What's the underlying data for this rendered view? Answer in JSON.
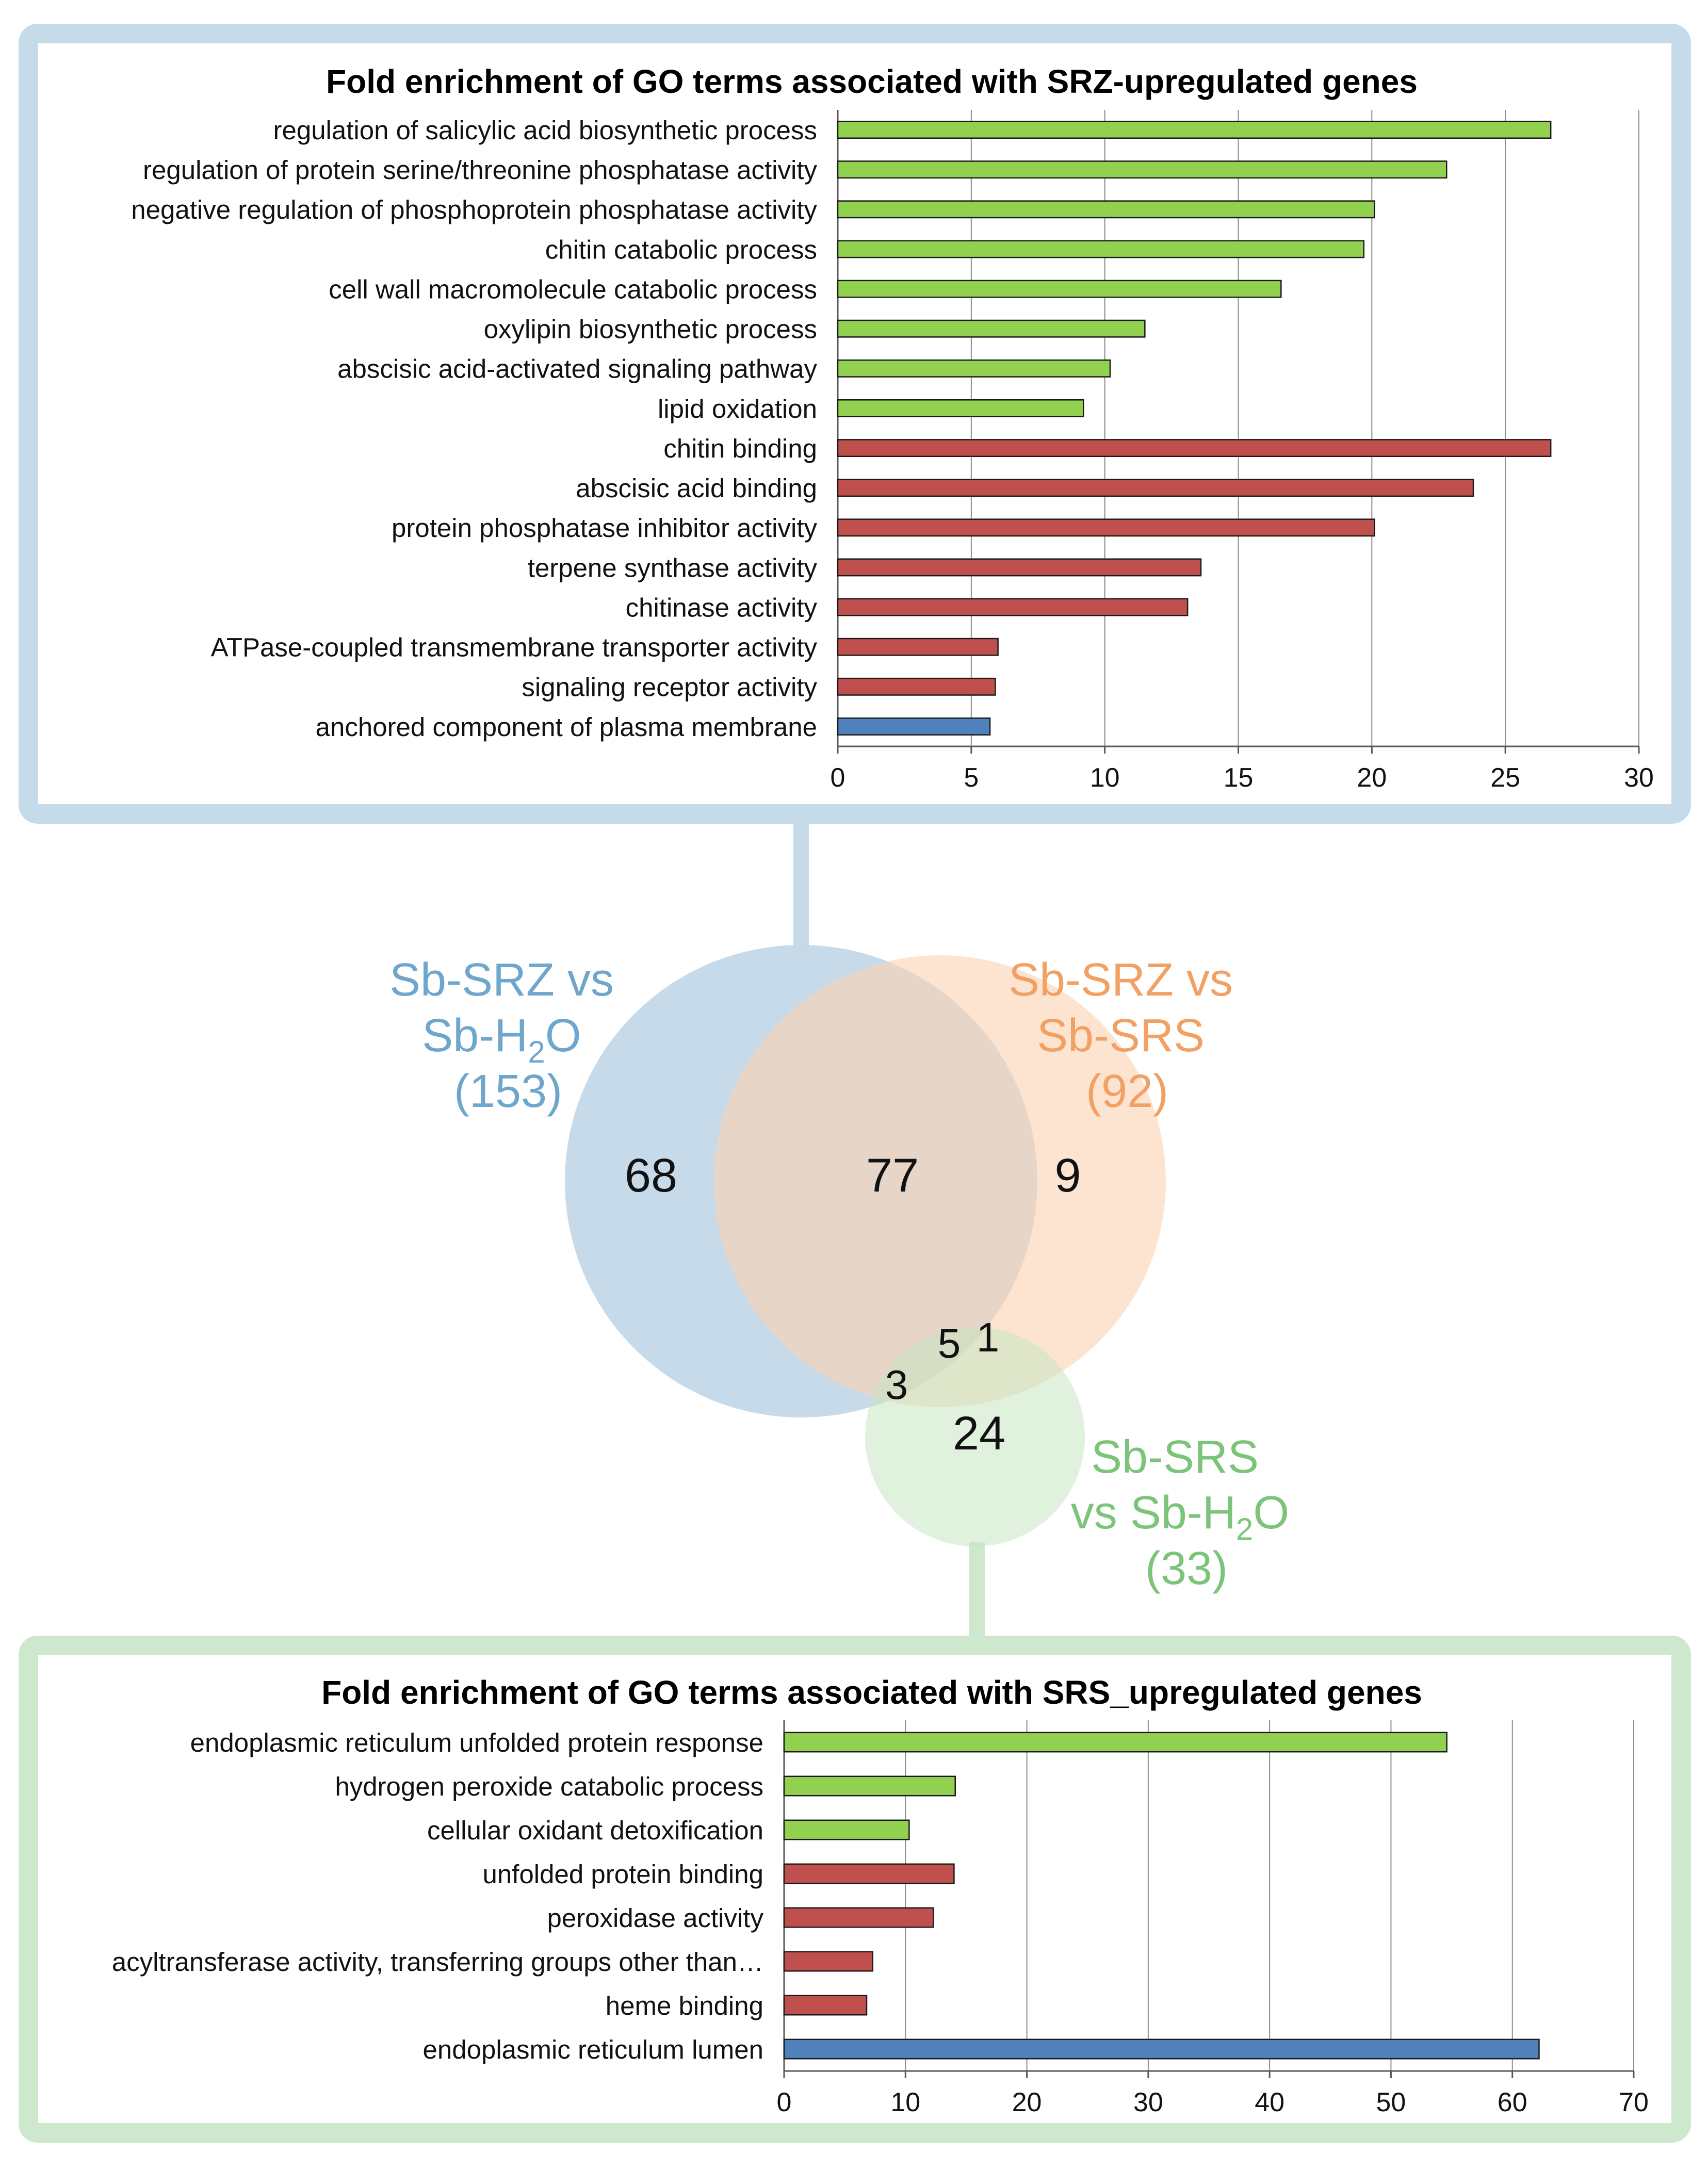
{
  "colors": {
    "biological_process": "#92d050",
    "molecular_function": "#c0504d",
    "cellular_component": "#4f81bd",
    "panel_top_border": "#c6dbea",
    "panel_bottom_border": "#cde8cc",
    "venn_blue": "#c3d8e8",
    "venn_orange": "#fbd3b3",
    "venn_green": "#c7e6c3",
    "label_blue": "#6fa6cd",
    "label_orange": "#f2a064",
    "label_green": "#7cc47a"
  },
  "chart_data": [
    {
      "id": "srz",
      "type": "bar",
      "orientation": "horizontal",
      "title": "Fold enrichment of GO terms associated with SRZ-upregulated genes",
      "xlabel": "",
      "ylabel": "",
      "xlim": [
        0,
        30
      ],
      "ticks": [
        0,
        5,
        10,
        15,
        20,
        25,
        30
      ],
      "grid": true,
      "categories": [
        "regulation of salicylic acid biosynthetic process",
        "regulation of protein serine/threonine phosphatase activity",
        "negative regulation of phosphoprotein phosphatase activity",
        "chitin catabolic process",
        "cell wall macromolecule catabolic process",
        "oxylipin biosynthetic process",
        "abscisic acid-activated signaling pathway",
        "lipid oxidation",
        "chitin binding",
        "abscisic acid binding",
        "protein phosphatase inhibitor activity",
        "terpene synthase activity",
        "chitinase activity",
        "ATPase-coupled transmembrane transporter activity",
        "signaling receptor activity",
        "anchored component of plasma membrane"
      ],
      "values": [
        26.7,
        22.8,
        20.1,
        19.7,
        16.6,
        11.5,
        10.2,
        9.2,
        26.7,
        23.8,
        20.1,
        13.6,
        13.1,
        6.0,
        5.9,
        5.7
      ],
      "groups": [
        "BP",
        "BP",
        "BP",
        "BP",
        "BP",
        "BP",
        "BP",
        "BP",
        "MF",
        "MF",
        "MF",
        "MF",
        "MF",
        "MF",
        "MF",
        "CC"
      ]
    },
    {
      "id": "srs",
      "type": "bar",
      "orientation": "horizontal",
      "title": "Fold enrichment of GO terms associated with SRS_upregulated genes",
      "xlabel": "",
      "ylabel": "",
      "xlim": [
        0,
        70
      ],
      "ticks": [
        0,
        10,
        20,
        30,
        40,
        50,
        60,
        70
      ],
      "grid": true,
      "categories": [
        "endoplasmic reticulum unfolded protein response",
        "hydrogen peroxide catabolic process",
        "cellular oxidant detoxification",
        "unfolded protein binding",
        "peroxidase activity",
        "acyltransferase activity, transferring groups other than…",
        "heme binding",
        "endoplasmic reticulum lumen"
      ],
      "values": [
        54.6,
        14.1,
        10.3,
        14.0,
        12.3,
        7.3,
        6.8,
        62.2
      ],
      "groups": [
        "BP",
        "BP",
        "BP",
        "MF",
        "MF",
        "MF",
        "MF",
        "CC"
      ]
    }
  ],
  "venn": {
    "sets": [
      {
        "id": "blue",
        "label_line1": "Sb-SRZ vs",
        "label_line2_prefix": "Sb-H",
        "label_line2_sub": "2",
        "label_line2_suffix": "O",
        "label_line3": "(153)"
      },
      {
        "id": "orange",
        "label_line1": "Sb-SRZ vs",
        "label_line2": "Sb-SRS",
        "label_line3": "(92)"
      },
      {
        "id": "green",
        "label_line1": "Sb-SRS",
        "label_line2_prefix": "vs Sb-H",
        "label_line2_sub": "2",
        "label_line2_suffix": "O",
        "label_line3": "(33)"
      }
    ],
    "counts": {
      "blue_only": "68",
      "blue_orange": "77",
      "orange_only": "9",
      "all_three": "5",
      "orange_green": "1",
      "blue_green": "3",
      "green_only": "24"
    }
  }
}
